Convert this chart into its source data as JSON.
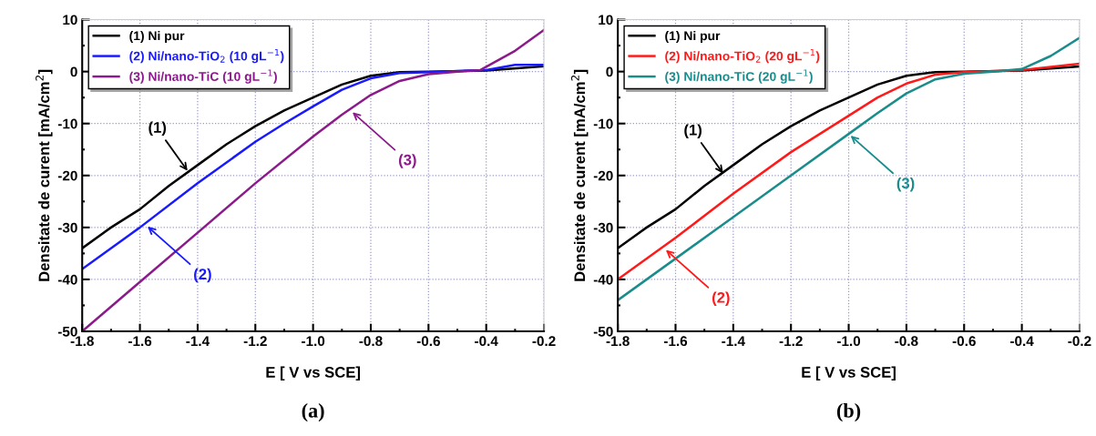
{
  "chart_data": [
    {
      "type": "line",
      "title": "(a)",
      "xlabel": "E [ V vs SCE]",
      "ylabel": "Densitate de curent [mA/cm$^{2}$]",
      "xlim": [
        -1.8,
        -0.2
      ],
      "ylim": [
        -50,
        10
      ],
      "xticks": [
        -1.8,
        -1.6,
        -1.4,
        -1.2,
        {
          "value": -1.0,
          "label": "-1.0"
        },
        -0.8,
        -0.6,
        -0.4,
        -0.2
      ],
      "yticks": [
        -50,
        -40,
        -30,
        -20,
        -10,
        0,
        10
      ],
      "grid": true,
      "legend": "top left",
      "line_style": "solid",
      "marker": "none",
      "series": [
        {
          "name": "(1) Ni pur",
          "color": "#000000",
          "x": [
            -1.8,
            -1.7,
            -1.6,
            -1.5,
            -1.4,
            -1.3,
            -1.2,
            -1.1,
            -1.0,
            -0.9,
            -0.8,
            -0.7,
            -0.6,
            -0.4,
            -0.2
          ],
          "values": [
            -34,
            -30,
            -26.5,
            -22,
            -18,
            -14,
            -10.5,
            -7.5,
            -5,
            -2.5,
            -0.8,
            -0.1,
            0,
            0.2,
            1
          ]
        },
        {
          "name": "(2) Ni/nano-TiO$_{2}$ (10 gL$^{−1}$)",
          "color": "#1a1aff",
          "x": [
            -1.8,
            -1.6,
            -1.4,
            -1.2,
            -1.1,
            -1.0,
            -0.9,
            -0.8,
            -0.7,
            -0.6,
            -0.4,
            -0.3,
            -0.2
          ],
          "values": [
            -38,
            -30,
            -21.5,
            -13.5,
            -10,
            -6.7,
            -3.5,
            -1.3,
            -0.3,
            -0.1,
            0.3,
            1.3,
            1.3
          ]
        },
        {
          "name": "(3) Ni/nano-TiC (10 gL$^{−1}$)",
          "color": "#8b1a8b",
          "x": [
            -1.8,
            -1.6,
            -1.4,
            -1.2,
            -1.0,
            -0.9,
            -0.8,
            -0.7,
            -0.6,
            -0.5,
            -0.42,
            -0.3,
            -0.2
          ],
          "values": [
            -50,
            -40.5,
            -31,
            -21.5,
            -12.5,
            -8.3,
            -4.5,
            -1.8,
            -0.5,
            0,
            0.3,
            4,
            8
          ]
        }
      ],
      "annotations": [
        {
          "text": "(1)",
          "x": -1.43,
          "y": -19.5
        },
        {
          "text": "(2)",
          "x": -1.58,
          "y": -29.5
        },
        {
          "text": "(3)",
          "x": -0.87,
          "y": -7.5
        }
      ]
    },
    {
      "type": "line",
      "title": "(b)",
      "xlabel": "E [ V vs SCE]",
      "ylabel": "Densitate de curent [mA/cm$^{2}$]",
      "xlim": [
        -1.8,
        -0.2
      ],
      "ylim": [
        -50,
        10
      ],
      "xticks": [
        -1.8,
        -1.6,
        -1.4,
        -1.2,
        {
          "value": -1.0,
          "label": "-1.0"
        },
        -0.8,
        -0.6,
        -0.4,
        -0.2
      ],
      "yticks": [
        -50,
        -40,
        -30,
        -20,
        -10,
        0,
        10
      ],
      "grid": true,
      "legend": "top left",
      "line_style": "solid",
      "marker": "none",
      "series": [
        {
          "name": "(1) Ni pur",
          "color": "#000000",
          "x": [
            -1.8,
            -1.7,
            -1.6,
            -1.5,
            -1.4,
            -1.3,
            -1.2,
            -1.1,
            -1.0,
            -0.9,
            -0.8,
            -0.7,
            -0.6,
            -0.4,
            -0.2
          ],
          "values": [
            -34,
            -30,
            -26.5,
            -22,
            -18,
            -14,
            -10.5,
            -7.5,
            -5,
            -2.5,
            -0.8,
            -0.1,
            0,
            0.2,
            1
          ]
        },
        {
          "name": "(2) Ni/nano-TiO$_{2}$ (20 gL$^{−1}$)",
          "color": "#ff1a1a",
          "x": [
            -1.8,
            -1.6,
            -1.4,
            -1.2,
            -1.0,
            -0.9,
            -0.8,
            -0.7,
            -0.6,
            -0.4,
            -0.2
          ],
          "values": [
            -40,
            -32,
            -23.5,
            -15.5,
            -8.5,
            -5,
            -2.3,
            -0.6,
            -0.1,
            0.3,
            1.5
          ]
        },
        {
          "name": "(3) Ni/nano-TiC (20 gL$^{−1}$)",
          "color": "#1a8c8c",
          "x": [
            -1.8,
            -1.6,
            -1.4,
            -1.2,
            -1.0,
            -0.9,
            -0.8,
            -0.7,
            -0.6,
            -0.5,
            -0.4,
            -0.3,
            -0.2
          ],
          "values": [
            -44,
            -36,
            -28,
            -20,
            -12,
            -8,
            -4.2,
            -1.5,
            -0.4,
            0,
            0.5,
            3,
            6.5
          ]
        }
      ],
      "annotations": [
        {
          "text": "(1)",
          "x": -1.43,
          "y": -20
        },
        {
          "text": "(2)",
          "x": -1.64,
          "y": -34
        },
        {
          "text": "(3)",
          "x": -1.0,
          "y": -12
        }
      ]
    }
  ]
}
